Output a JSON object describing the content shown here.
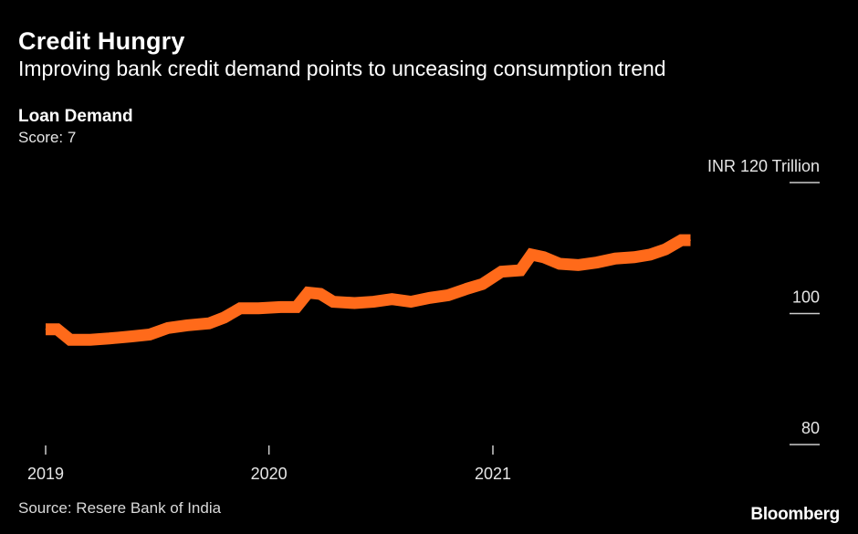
{
  "header": {
    "title": "Credit Hungry",
    "subtitle": "Improving bank credit demand points to unceasing consumption trend",
    "metric_label": "Loan Demand",
    "score_label": "Score: 7"
  },
  "footer": {
    "source": "Source: Resere Bank of India",
    "brand": "Bloomberg"
  },
  "colors": {
    "background": "#000000",
    "line": "#ff6a1a",
    "text": "#ffffff",
    "axis": "#cccccc"
  },
  "chart_data": {
    "type": "line",
    "title": "Credit Hungry",
    "subtitle": "Improving bank credit demand points to unceasing consumption trend",
    "ylabel": "",
    "y_unit_label": "INR 120  Trillion",
    "ylim": [
      80,
      120
    ],
    "y_ticks": [
      {
        "value": 120,
        "label": "INR 120  Trillion"
      },
      {
        "value": 100,
        "label": "100"
      },
      {
        "value": 80,
        "label": "80"
      }
    ],
    "x_ticks": [
      {
        "value": "2019-01",
        "label": "2019"
      },
      {
        "value": "2020-01",
        "label": "2020"
      },
      {
        "value": "2021-01",
        "label": "2021"
      }
    ],
    "grid": false,
    "series": [
      {
        "name": "",
        "points": [
          {
            "x": "2019-01-01",
            "y": 97.6
          },
          {
            "x": "2019-01-20",
            "y": 97.6
          },
          {
            "x": "2019-02-10",
            "y": 96.0
          },
          {
            "x": "2019-03-15",
            "y": 96.0
          },
          {
            "x": "2019-04-15",
            "y": 96.2
          },
          {
            "x": "2019-05-20",
            "y": 96.5
          },
          {
            "x": "2019-06-20",
            "y": 96.8
          },
          {
            "x": "2019-07-20",
            "y": 97.8
          },
          {
            "x": "2019-08-20",
            "y": 98.2
          },
          {
            "x": "2019-09-25",
            "y": 98.5
          },
          {
            "x": "2019-10-20",
            "y": 99.4
          },
          {
            "x": "2019-11-15",
            "y": 100.8
          },
          {
            "x": "2019-12-15",
            "y": 100.8
          },
          {
            "x": "2020-01-20",
            "y": 101.0
          },
          {
            "x": "2020-02-15",
            "y": 101.0
          },
          {
            "x": "2020-03-05",
            "y": 103.2
          },
          {
            "x": "2020-03-25",
            "y": 103.0
          },
          {
            "x": "2020-04-15",
            "y": 101.8
          },
          {
            "x": "2020-05-20",
            "y": 101.6
          },
          {
            "x": "2020-06-20",
            "y": 101.8
          },
          {
            "x": "2020-07-20",
            "y": 102.2
          },
          {
            "x": "2020-08-20",
            "y": 101.8
          },
          {
            "x": "2020-09-20",
            "y": 102.4
          },
          {
            "x": "2020-10-20",
            "y": 102.8
          },
          {
            "x": "2020-11-20",
            "y": 103.8
          },
          {
            "x": "2020-12-15",
            "y": 104.5
          },
          {
            "x": "2021-01-15",
            "y": 106.4
          },
          {
            "x": "2021-02-15",
            "y": 106.6
          },
          {
            "x": "2021-03-05",
            "y": 109.0
          },
          {
            "x": "2021-03-25",
            "y": 108.6
          },
          {
            "x": "2021-04-20",
            "y": 107.6
          },
          {
            "x": "2021-05-20",
            "y": 107.4
          },
          {
            "x": "2021-06-20",
            "y": 107.8
          },
          {
            "x": "2021-07-20",
            "y": 108.4
          },
          {
            "x": "2021-08-20",
            "y": 108.6
          },
          {
            "x": "2021-09-15",
            "y": 109.0
          },
          {
            "x": "2021-10-10",
            "y": 109.8
          },
          {
            "x": "2021-11-05",
            "y": 111.2
          },
          {
            "x": "2021-11-20",
            "y": 111.2
          }
        ]
      }
    ]
  }
}
